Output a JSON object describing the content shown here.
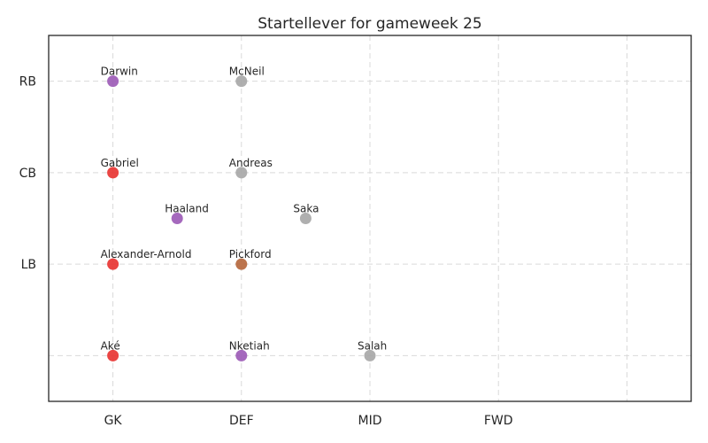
{
  "chart_data": {
    "type": "scatter",
    "title": "Startellever for gameweek 25",
    "xlabel": "",
    "ylabel": "",
    "x_ticks": [
      {
        "value": 0,
        "label": "GK"
      },
      {
        "value": 1,
        "label": "DEF"
      },
      {
        "value": 2,
        "label": "MID"
      },
      {
        "value": 3,
        "label": "FWD"
      },
      {
        "value": 4,
        "label": ""
      }
    ],
    "y_ticks": [
      {
        "value": 0,
        "label": ""
      },
      {
        "value": 1,
        "label": "LB"
      },
      {
        "value": 2,
        "label": "CB"
      },
      {
        "value": 3,
        "label": "RB"
      }
    ],
    "xlim": [
      -0.5,
      4.5
    ],
    "ylim": [
      -0.5,
      3.5
    ],
    "grid": true,
    "points": [
      {
        "label": "Darwin",
        "x": 0,
        "y": 3,
        "color": "#9b59b6"
      },
      {
        "label": "McNeil",
        "x": 1,
        "y": 3,
        "color": "#a6a6a6"
      },
      {
        "label": "Gabriel",
        "x": 0,
        "y": 2,
        "color": "#e8312f"
      },
      {
        "label": "Andreas",
        "x": 1,
        "y": 2,
        "color": "#a6a6a6"
      },
      {
        "label": "Haaland",
        "x": 0.5,
        "y": 1.5,
        "color": "#9b59b6"
      },
      {
        "label": "Saka",
        "x": 1.5,
        "y": 1.5,
        "color": "#a6a6a6"
      },
      {
        "label": "Alexander-Arnold",
        "x": 0,
        "y": 1,
        "color": "#e8312f"
      },
      {
        "label": "Pickford",
        "x": 1,
        "y": 1,
        "color": "#b5653a"
      },
      {
        "label": "Aké",
        "x": 0,
        "y": 0,
        "color": "#e8312f"
      },
      {
        "label": "Nketiah",
        "x": 1,
        "y": 0,
        "color": "#9b59b6"
      },
      {
        "label": "Salah",
        "x": 2,
        "y": 0,
        "color": "#a6a6a6"
      }
    ]
  }
}
